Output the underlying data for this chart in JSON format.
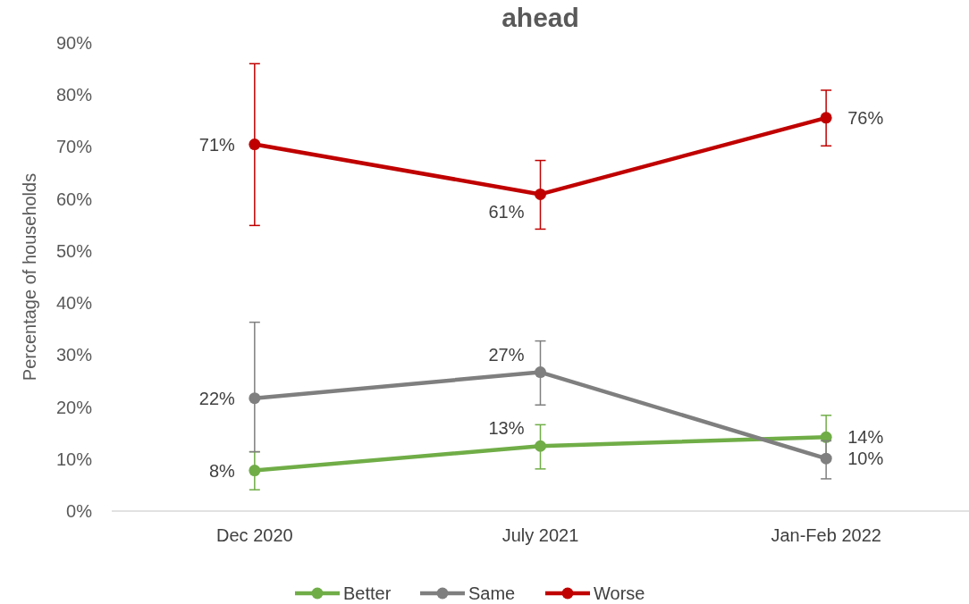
{
  "chart_data": {
    "type": "line",
    "title": "ahead",
    "ylabel": "Percentage of households",
    "categories": [
      "Dec 2020",
      "July 2021",
      "Jan-Feb 2022"
    ],
    "series": [
      {
        "name": "Better",
        "color": "#70ad47",
        "values": [
          7.8,
          12.5,
          14.2
        ],
        "value_labels": [
          "8%",
          "13%",
          "14%"
        ],
        "errors": [
          [
            4.1,
            11.4
          ],
          [
            8.1,
            16.6
          ],
          [
            10.5,
            18.4
          ]
        ]
      },
      {
        "name": "Same",
        "color": "#7f7f7f",
        "values": [
          21.7,
          26.7,
          10.1
        ],
        "value_labels": [
          "22%",
          "27%",
          "10%"
        ],
        "errors": [
          [
            11.4,
            36.3
          ],
          [
            20.4,
            32.7
          ],
          [
            6.2,
            13.5
          ]
        ]
      },
      {
        "name": "Worse",
        "color": "#c00000",
        "values": [
          70.5,
          60.9,
          75.6
        ],
        "value_labels": [
          "71%",
          "61%",
          "76%"
        ],
        "errors": [
          [
            54.9,
            86.0
          ],
          [
            54.2,
            67.4
          ],
          [
            70.2,
            80.9
          ]
        ]
      }
    ],
    "ylim": [
      0,
      90
    ],
    "yticks": [
      {
        "value": 0,
        "label": "0%"
      },
      {
        "value": 10,
        "label": "10%"
      },
      {
        "value": 20,
        "label": "20%"
      },
      {
        "value": 30,
        "label": "30%"
      },
      {
        "value": 40,
        "label": "40%"
      },
      {
        "value": 50,
        "label": "50%"
      },
      {
        "value": 60,
        "label": "60%"
      },
      {
        "value": 70,
        "label": "70%"
      },
      {
        "value": 80,
        "label": "80%"
      },
      {
        "value": 90,
        "label": "90%"
      }
    ],
    "grid": false,
    "legend": "bottom",
    "marker": "circle",
    "line_style": "solid"
  }
}
